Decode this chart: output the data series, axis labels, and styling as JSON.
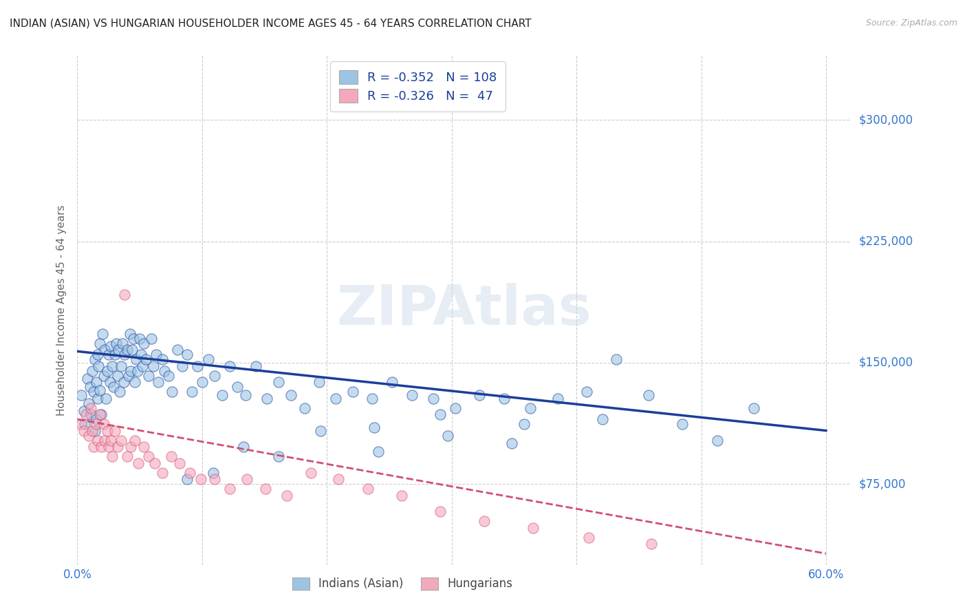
{
  "title": "INDIAN (ASIAN) VS HUNGARIAN HOUSEHOLDER INCOME AGES 45 - 64 YEARS CORRELATION CHART",
  "source": "Source: ZipAtlas.com",
  "ylabel": "Householder Income Ages 45 - 64 years",
  "xlim": [
    0.0,
    0.62
  ],
  "ylim": [
    25000,
    340000
  ],
  "yticks": [
    75000,
    150000,
    225000,
    300000
  ],
  "ytick_labels": [
    "$75,000",
    "$150,000",
    "$225,000",
    "$300,000"
  ],
  "xticks": [
    0.0,
    0.1,
    0.2,
    0.3,
    0.4,
    0.5,
    0.6
  ],
  "xtick_labels": [
    "0.0%",
    "",
    "",
    "",
    "",
    "",
    "60.0%"
  ],
  "blue_color": "#9CC4E4",
  "pink_color": "#F4A8BC",
  "blue_line_color": "#1A3F9A",
  "pink_line_color": "#D05070",
  "watermark": "ZIPAtlas",
  "background_color": "#ffffff",
  "grid_color": "#cccccc",
  "title_color": "#222222",
  "tick_color": "#3377CC",
  "indian_trend_y0": 157000,
  "indian_trend_y1": 108000,
  "hungarian_trend_y0": 115000,
  "hungarian_trend_y1": 32000,
  "indian_x": [
    0.003,
    0.005,
    0.006,
    0.008,
    0.009,
    0.01,
    0.011,
    0.012,
    0.013,
    0.014,
    0.014,
    0.015,
    0.015,
    0.016,
    0.016,
    0.017,
    0.018,
    0.018,
    0.019,
    0.02,
    0.021,
    0.022,
    0.023,
    0.024,
    0.025,
    0.026,
    0.027,
    0.028,
    0.029,
    0.03,
    0.031,
    0.032,
    0.033,
    0.034,
    0.035,
    0.036,
    0.037,
    0.038,
    0.04,
    0.041,
    0.042,
    0.043,
    0.044,
    0.045,
    0.046,
    0.047,
    0.048,
    0.05,
    0.051,
    0.052,
    0.053,
    0.055,
    0.057,
    0.059,
    0.061,
    0.063,
    0.065,
    0.068,
    0.07,
    0.073,
    0.076,
    0.08,
    0.084,
    0.088,
    0.092,
    0.096,
    0.1,
    0.105,
    0.11,
    0.116,
    0.122,
    0.128,
    0.135,
    0.143,
    0.152,
    0.161,
    0.171,
    0.182,
    0.194,
    0.207,
    0.221,
    0.236,
    0.252,
    0.268,
    0.285,
    0.303,
    0.322,
    0.342,
    0.363,
    0.385,
    0.408,
    0.432,
    0.458,
    0.485,
    0.513,
    0.542,
    0.421,
    0.358,
    0.297,
    0.241,
    0.348,
    0.291,
    0.238,
    0.195,
    0.161,
    0.133,
    0.109,
    0.088
  ],
  "indian_y": [
    130000,
    120000,
    112000,
    140000,
    125000,
    135000,
    118000,
    145000,
    132000,
    108000,
    152000,
    138000,
    115000,
    155000,
    128000,
    148000,
    162000,
    133000,
    118000,
    168000,
    142000,
    158000,
    128000,
    145000,
    155000,
    138000,
    160000,
    148000,
    135000,
    155000,
    162000,
    142000,
    158000,
    132000,
    148000,
    162000,
    138000,
    155000,
    158000,
    142000,
    168000,
    145000,
    158000,
    165000,
    138000,
    152000,
    145000,
    165000,
    155000,
    148000,
    162000,
    152000,
    142000,
    165000,
    148000,
    155000,
    138000,
    152000,
    145000,
    142000,
    132000,
    158000,
    148000,
    155000,
    132000,
    148000,
    138000,
    152000,
    142000,
    130000,
    148000,
    135000,
    130000,
    148000,
    128000,
    138000,
    130000,
    122000,
    138000,
    128000,
    132000,
    128000,
    138000,
    130000,
    128000,
    122000,
    130000,
    128000,
    122000,
    128000,
    132000,
    152000,
    130000,
    112000,
    102000,
    122000,
    115000,
    112000,
    105000,
    95000,
    100000,
    118000,
    110000,
    108000,
    92000,
    98000,
    82000,
    78000
  ],
  "hungarian_x": [
    0.003,
    0.005,
    0.007,
    0.009,
    0.011,
    0.012,
    0.013,
    0.015,
    0.016,
    0.018,
    0.019,
    0.021,
    0.022,
    0.024,
    0.025,
    0.027,
    0.028,
    0.03,
    0.032,
    0.035,
    0.038,
    0.04,
    0.043,
    0.046,
    0.049,
    0.053,
    0.057,
    0.062,
    0.068,
    0.075,
    0.082,
    0.09,
    0.099,
    0.11,
    0.122,
    0.136,
    0.151,
    0.168,
    0.187,
    0.209,
    0.233,
    0.26,
    0.291,
    0.326,
    0.365,
    0.41,
    0.46
  ],
  "hungarian_y": [
    112000,
    108000,
    118000,
    105000,
    122000,
    108000,
    98000,
    112000,
    102000,
    118000,
    98000,
    112000,
    102000,
    108000,
    98000,
    102000,
    92000,
    108000,
    98000,
    102000,
    192000,
    92000,
    98000,
    102000,
    88000,
    98000,
    92000,
    88000,
    82000,
    92000,
    88000,
    82000,
    78000,
    78000,
    72000,
    78000,
    72000,
    68000,
    82000,
    78000,
    72000,
    68000,
    58000,
    52000,
    48000,
    42000,
    38000
  ]
}
